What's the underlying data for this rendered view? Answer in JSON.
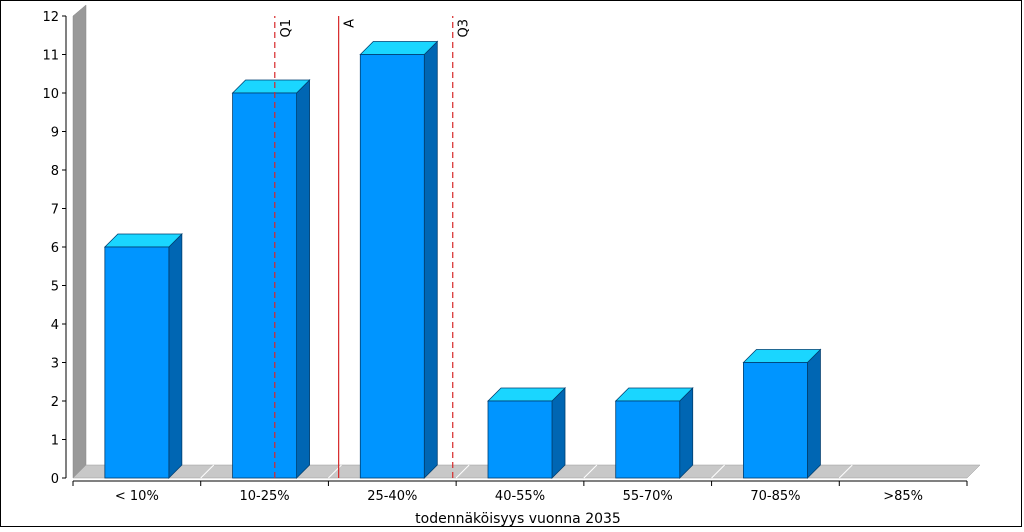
{
  "chart_data": {
    "type": "bar",
    "xlabel": "todennäköisyys vuonna 2035",
    "categories": [
      "< 10%",
      "10-25%",
      "25-40%",
      "40-55%",
      "55-70%",
      "70-85%",
      ">85%"
    ],
    "values": [
      6,
      10,
      11,
      2,
      2,
      3,
      0
    ],
    "ylim": [
      0,
      12
    ],
    "yticks": [
      0,
      1,
      2,
      3,
      4,
      5,
      6,
      7,
      8,
      9,
      10,
      11,
      12
    ],
    "grid": false,
    "bar_color": "#0095ff",
    "bar_top_color": "#1ad6ff",
    "bar_side_color": "#0066b3",
    "markers": [
      {
        "label": "Q1",
        "x": 18.7,
        "style": "dashed",
        "color": "#d62728"
      },
      {
        "label": "A",
        "x": 26.2,
        "style": "solid",
        "color": "#d62728"
      },
      {
        "label": "Q3",
        "x": 39.6,
        "style": "dashed",
        "color": "#d62728"
      }
    ]
  }
}
